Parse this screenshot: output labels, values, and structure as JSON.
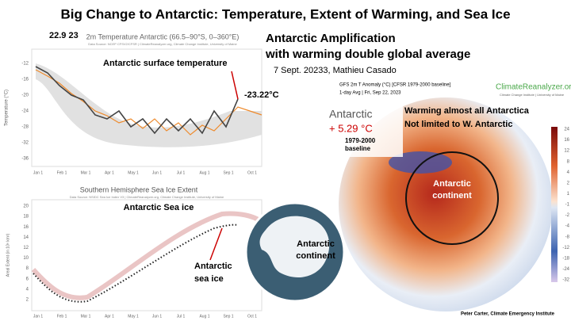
{
  "header": {
    "title": "Big Change to Antarctic: Temperature, Extent of Warming, and Sea Ice"
  },
  "temperature_panel": {
    "date": "22.9 23",
    "chart_title": "2m Temperature Antarctic (66.5–90°S, 0–360°E)",
    "source": "Data Source: NCEP CFSV2/CFSR | ClimateReanalyzer.org, Climate Change Institute, University of Maine",
    "y_axis_label": "Temperature (°C)",
    "y_ticks": [
      "-12",
      "-16",
      "-20",
      "-24",
      "-28",
      "-32",
      "-36"
    ],
    "x_ticks": [
      "Jan 1",
      "Feb 1",
      "Mar 1",
      "Apr 1",
      "May 1",
      "Jun 1",
      "Jul 1",
      "Aug 1",
      "Sep 1",
      "Oct 1"
    ],
    "annotation": "Antarctic surface temperature",
    "current_value": "-23.22°C"
  },
  "amplification": {
    "line1": "Antarctic Amplification",
    "line2": "with warming double global average",
    "citation": "7 Sept. 20233, Mathieu Casado"
  },
  "sea_ice_panel": {
    "chart_title": "Southern Hemisphere Sea Ice Extent",
    "source": "Data Source: NSIDC Sea Ice Index V3 | ClimateReanalyzer.org, Climate Change Institute, University of Maine",
    "y_axis_label": "Areal Extent (in 10⁶ km²)",
    "y_ticks": [
      "20",
      "18",
      "16",
      "14",
      "12",
      "10",
      "8",
      "6",
      "4",
      "2"
    ],
    "x_ticks": [
      "Jan 1",
      "Feb 1",
      "Mar 1",
      "Apr 1",
      "May 1",
      "Jun 1",
      "Jul 1",
      "Aug 1",
      "Sep 1",
      "Oct 1"
    ],
    "annotation_top": "Antarctic Sea ice",
    "annotation_bottom": [
      "Antarctic",
      "sea ice"
    ]
  },
  "continent_inset": {
    "label": [
      "Antarctic",
      "continent"
    ]
  },
  "anomaly_map": {
    "header": "GFS 2m T Anomaly (°C) [CFSR 1979-2000 baseline]",
    "subheader": "1-day Avg | Fri, Sep 22, 2023",
    "logo": "ClimateReanalyzer.org",
    "logo_sub": "Climate Change Institute | University of Maine",
    "region": "Antarctic",
    "anomaly": "+ 5.29 °C",
    "baseline": [
      "1979-2000",
      "baseline"
    ],
    "note": [
      "Warming almost all Antarctica",
      "Not limited to W. Antarctic"
    ],
    "continent_label": [
      "Antarctic",
      "continent"
    ],
    "scale": [
      "24",
      "16",
      "12",
      "8",
      "4",
      "2",
      "1",
      "-1",
      "-2",
      "-4",
      "-8",
      "-12",
      "-18",
      "-24",
      "-32"
    ]
  },
  "footer": {
    "credit": "Peter Carter, Climate Emergency Institute"
  }
}
